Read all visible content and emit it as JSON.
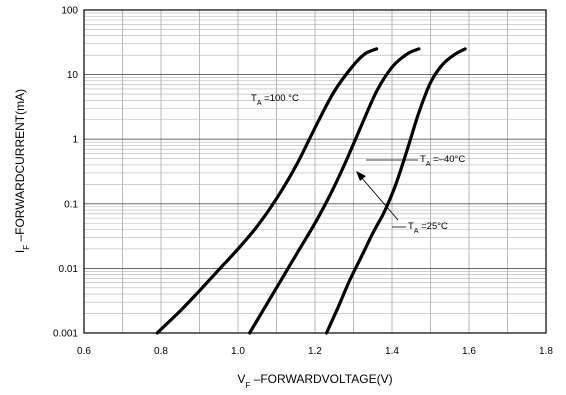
{
  "chart_data": {
    "type": "line",
    "title": "",
    "xlabel": {
      "main": "V",
      "sub": "F",
      "rest": " –FORWARDVOLTAGE(V)"
    },
    "ylabel": {
      "main": "I",
      "sub": "F",
      "rest": " –FORWARDCURRENT(mA)"
    },
    "xlim": [
      0.6,
      1.8
    ],
    "ylim": [
      0.001,
      100
    ],
    "yscale": "log",
    "grid": true,
    "x_ticks": [
      "0.6",
      "0.8",
      "1.0",
      "1.2",
      "1.4",
      "1.6",
      "1.8"
    ],
    "y_ticks": [
      "0.001",
      "0.01",
      "0.1",
      "1",
      "10",
      "100"
    ],
    "series": [
      {
        "x": [
          0.79,
          0.85,
          0.9,
          0.95,
          1.0,
          1.05,
          1.1,
          1.15,
          1.2,
          1.25,
          1.3,
          1.33,
          1.36
        ],
        "y": [
          0.001,
          0.0022,
          0.0045,
          0.0095,
          0.02,
          0.045,
          0.12,
          0.38,
          1.5,
          5.5,
          14,
          21,
          25
        ]
      },
      {
        "x": [
          1.03,
          1.07,
          1.1,
          1.13,
          1.16,
          1.2,
          1.24,
          1.28,
          1.32,
          1.36,
          1.4,
          1.44,
          1.47
        ],
        "y": [
          0.001,
          0.0025,
          0.005,
          0.01,
          0.02,
          0.05,
          0.14,
          0.45,
          1.6,
          5.5,
          13,
          21,
          25
        ]
      },
      {
        "x": [
          1.23,
          1.26,
          1.29,
          1.32,
          1.35,
          1.38,
          1.41,
          1.44,
          1.47,
          1.5,
          1.53,
          1.56,
          1.59
        ],
        "y": [
          0.001,
          0.0025,
          0.0065,
          0.015,
          0.035,
          0.075,
          0.2,
          0.7,
          2.6,
          7.5,
          14,
          20,
          25
        ]
      }
    ],
    "annotations": [
      {
        "pre": "T",
        "sub": "A",
        "value": " =100 °C"
      },
      {
        "pre": "T",
        "sub": "A",
        "value": " =–40°C"
      },
      {
        "pre": "T",
        "sub": "A",
        "value": " =25°C"
      }
    ]
  }
}
